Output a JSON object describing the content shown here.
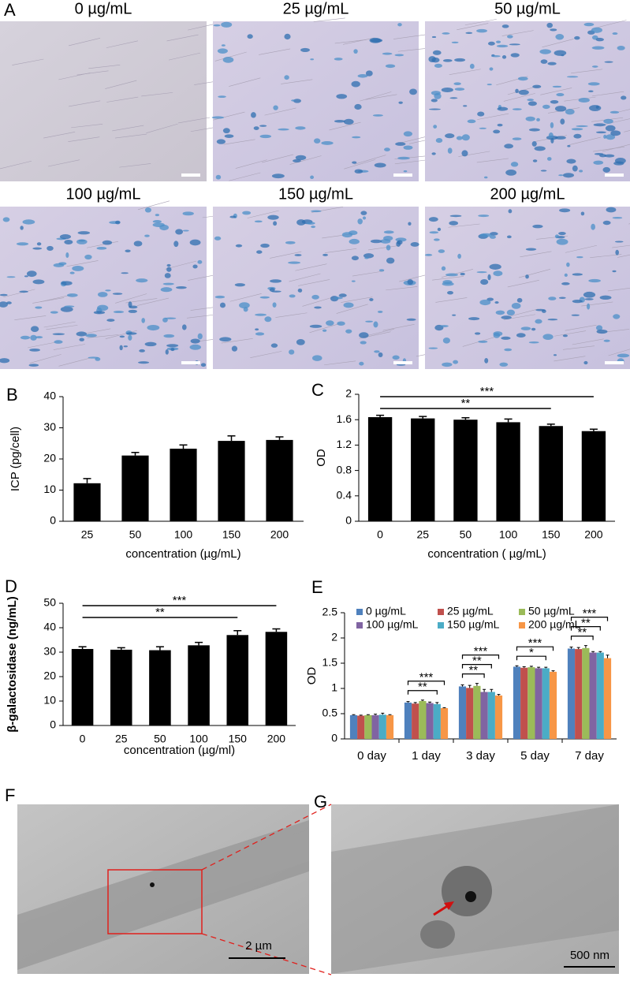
{
  "panel_a": {
    "label": "A",
    "images": [
      {
        "caption": "0  µg/mL"
      },
      {
        "caption": "25  µg/mL"
      },
      {
        "caption": "50  µg/mL"
      },
      {
        "caption": "100  µg/mL"
      },
      {
        "caption": "150  µg/mL"
      },
      {
        "caption": "200  µg/mL"
      }
    ]
  },
  "chart_data": [
    {
      "type": "bar",
      "panel_label": "B",
      "y_label": "ICP (pg/cell)",
      "x_label": "concentration (µg/mL)",
      "categories": [
        "25",
        "50",
        "100",
        "150",
        "200"
      ],
      "values": [
        12.2,
        21.1,
        23.3,
        25.8,
        26.1
      ],
      "errors": [
        1.5,
        1.0,
        1.2,
        1.6,
        1.0
      ],
      "color": "#000000",
      "ylim": [
        0,
        40
      ],
      "yticks": [
        0,
        10,
        20,
        30,
        40
      ]
    },
    {
      "type": "bar",
      "panel_label": "C",
      "y_label": "OD",
      "x_label": "concentration ( µg/mL)",
      "categories": [
        "0",
        "25",
        "50",
        "100",
        "150",
        "200"
      ],
      "values": [
        1.64,
        1.62,
        1.6,
        1.56,
        1.5,
        1.42
      ],
      "errors": [
        0.03,
        0.03,
        0.03,
        0.05,
        0.03,
        0.03
      ],
      "color": "#000000",
      "ylim": [
        0,
        2
      ],
      "yticks": [
        0,
        0.4,
        0.8,
        1.2,
        1.6,
        2
      ],
      "annotations": [
        {
          "label": "***",
          "from": "0",
          "to": "200"
        },
        {
          "label": "**",
          "from": "0",
          "to": "150"
        }
      ]
    },
    {
      "type": "bar",
      "panel_label": "D",
      "y_label": "β-galactosidase (ng/mL)",
      "x_label": "concentration (µg/ml)",
      "categories": [
        "0",
        "25",
        "50",
        "100",
        "150",
        "200"
      ],
      "values": [
        31.3,
        31.0,
        30.8,
        32.8,
        37.0,
        38.3
      ],
      "errors": [
        0.9,
        0.8,
        1.4,
        1.2,
        1.8,
        1.2
      ],
      "color": "#000000",
      "ylim": [
        0,
        50
      ],
      "yticks": [
        0,
        10,
        20,
        30,
        40,
        50
      ],
      "annotations": [
        {
          "label": "***",
          "from": "0",
          "to": "200"
        },
        {
          "label": "**",
          "from": "0",
          "to": "150"
        }
      ]
    },
    {
      "type": "grouped_bar",
      "panel_label": "E",
      "y_label": "OD",
      "categories": [
        "0 day",
        "1 day",
        "3 day",
        "5 day",
        "7 day"
      ],
      "series": [
        {
          "name": "0 µg/mL",
          "color": "#4f81bd",
          "values": [
            0.47,
            0.72,
            1.04,
            1.43,
            1.79
          ],
          "errors": [
            0.01,
            0.02,
            0.03,
            0.02,
            0.03
          ]
        },
        {
          "name": "25 µg/mL",
          "color": "#c0504d",
          "values": [
            0.46,
            0.7,
            1.01,
            1.41,
            1.78
          ],
          "errors": [
            0.01,
            0.02,
            0.05,
            0.02,
            0.03
          ]
        },
        {
          "name": "50 µg/mL",
          "color": "#9bbb59",
          "values": [
            0.47,
            0.75,
            1.05,
            1.42,
            1.8
          ],
          "errors": [
            0.01,
            0.02,
            0.05,
            0.02,
            0.05
          ]
        },
        {
          "name": "100 µg/mL",
          "color": "#8064a2",
          "values": [
            0.47,
            0.71,
            0.93,
            1.4,
            1.71
          ],
          "errors": [
            0.02,
            0.02,
            0.05,
            0.02,
            0.02
          ]
        },
        {
          "name": "150 µg/mL",
          "color": "#4bacc6",
          "values": [
            0.48,
            0.69,
            0.93,
            1.4,
            1.71
          ],
          "errors": [
            0.03,
            0.03,
            0.05,
            0.02,
            0.02
          ]
        },
        {
          "name": "200 µg/mL",
          "color": "#f79646",
          "values": [
            0.47,
            0.61,
            0.86,
            1.33,
            1.6
          ],
          "errors": [
            0.01,
            0.01,
            0.02,
            0.02,
            0.06
          ]
        }
      ],
      "ylim": [
        0,
        2.5
      ],
      "yticks": [
        0,
        0.5,
        1,
        1.5,
        2,
        2.5
      ],
      "significance": [
        [],
        [
          "***",
          "**"
        ],
        [
          "***",
          "**",
          "**"
        ],
        [
          "***",
          "*"
        ],
        [
          "***",
          "**",
          "**"
        ]
      ]
    }
  ],
  "panel_f": {
    "label": "F",
    "scale_bar": "2 µm"
  },
  "panel_g": {
    "label": "G",
    "scale_bar": "500 nm"
  }
}
